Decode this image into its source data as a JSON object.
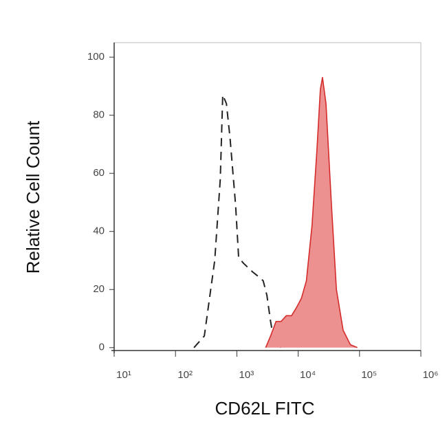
{
  "chart_data": {
    "type": "line",
    "x_label": "CD62L FITC",
    "y_label": "Relative Cell Count",
    "xscale": "log",
    "xlim": [
      10,
      1000000
    ],
    "ylim": [
      -1,
      105
    ],
    "xticks": [
      {
        "value": 10,
        "label": "10¹"
      },
      {
        "value": 100,
        "label": "10²"
      },
      {
        "value": 1000,
        "label": "10³"
      },
      {
        "value": 10000,
        "label": "10⁴"
      },
      {
        "value": 100000,
        "label": "10⁵"
      },
      {
        "value": 1000000,
        "label": "10⁶"
      }
    ],
    "yticks": [
      0,
      20,
      40,
      60,
      80,
      100
    ],
    "series": [
      {
        "color": "#222222",
        "style": "dashed",
        "fill": null,
        "x": [
          200,
          295,
          436,
          537,
          589,
          676,
          776,
          955,
          1070,
          1290,
          1820,
          2400,
          2690,
          3090,
          3550,
          3980,
          5250
        ],
        "values": [
          0,
          4,
          30,
          58,
          87,
          84,
          72,
          49,
          31,
          29,
          26,
          24,
          23,
          18,
          9,
          3,
          0
        ]
      },
      {
        "color": "#d42a2a",
        "style": "solid",
        "fill": "#ec9090",
        "x": [
          2950,
          3550,
          4350,
          5250,
          6400,
          7800,
          9500,
          11300,
          13600,
          16800,
          20200,
          23000,
          24900,
          28400,
          34900,
          42000,
          54000,
          71000,
          92000
        ],
        "values": [
          0,
          4,
          9,
          9,
          11,
          11,
          14,
          17,
          23,
          42,
          68,
          89,
          93,
          84,
          49,
          20,
          6,
          1,
          0
        ]
      }
    ]
  }
}
